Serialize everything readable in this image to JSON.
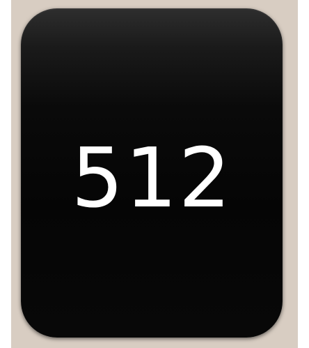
{
  "tile": {
    "value": "512"
  }
}
